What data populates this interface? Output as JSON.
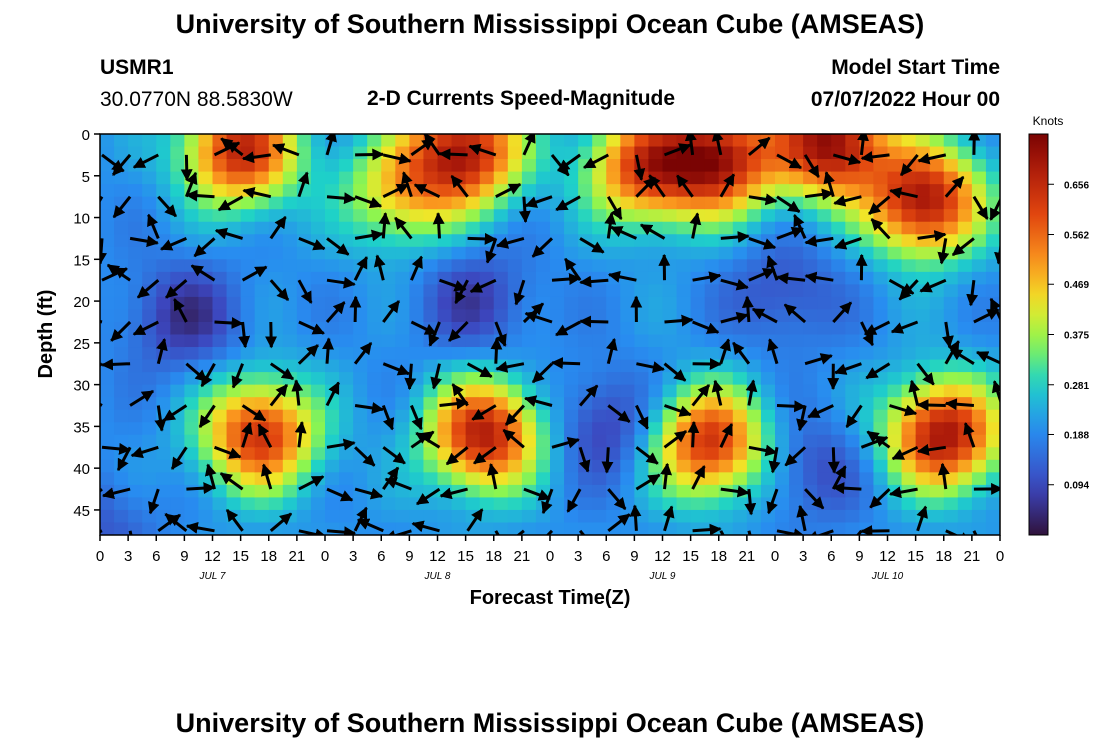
{
  "page": {
    "title_top": "University of Southern Mississippi Ocean Cube (AMSEAS)",
    "title_bottom": "University of Southern Mississippi Ocean Cube (AMSEAS)",
    "station_id": "USMR1",
    "station_coords": "30.0770N  88.5830W",
    "plot_title": "2-D Currents Speed-Magnitude",
    "model_start_label": "Model Start Time",
    "model_start_value": "07/07/2022 Hour 00"
  },
  "chart_data": {
    "type": "heatmap",
    "title": "2-D Currents Speed-Magnitude",
    "xlabel": "Forecast Time(Z)",
    "ylabel": "Depth (ft)",
    "x_range_hours": [
      0,
      96
    ],
    "x_tick_step_hours": 3,
    "x_tick_labels": [
      "0",
      "3",
      "6",
      "9",
      "12",
      "15",
      "18",
      "21",
      "0",
      "3",
      "6",
      "9",
      "12",
      "15",
      "18",
      "21",
      "0",
      "3",
      "6",
      "9",
      "12",
      "15",
      "18",
      "21",
      "0",
      "3",
      "6",
      "9",
      "12",
      "15",
      "18",
      "21",
      "0"
    ],
    "day_labels": [
      {
        "label": "JUL 7",
        "hour": 12
      },
      {
        "label": "JUL 8",
        "hour": 36
      },
      {
        "label": "JUL 9",
        "hour": 60
      },
      {
        "label": "JUL 10",
        "hour": 84
      }
    ],
    "y_range_ft": [
      0,
      48
    ],
    "y_ticks": [
      "0",
      "5",
      "10",
      "15",
      "20",
      "25",
      "30",
      "35",
      "40",
      "45"
    ],
    "colorbar": {
      "title": "Knots",
      "range": [
        0,
        0.75
      ],
      "tick_labels": [
        "0.656",
        "0.562",
        "0.469",
        "0.375",
        "0.281",
        "0.188",
        "0.094"
      ]
    },
    "speed_blobs": [
      {
        "t": 15,
        "d": 2,
        "value": 0.66
      },
      {
        "t": 39,
        "d": 2,
        "value": 0.68
      },
      {
        "t": 32,
        "d": 7,
        "value": 0.45
      },
      {
        "t": 58,
        "d": 4,
        "value": 0.6
      },
      {
        "t": 66,
        "d": 3,
        "value": 0.68
      },
      {
        "t": 78,
        "d": 1,
        "value": 0.72
      },
      {
        "t": 88,
        "d": 8,
        "value": 0.7
      },
      {
        "t": 17,
        "d": 36,
        "value": 0.64
      },
      {
        "t": 41,
        "d": 36,
        "value": 0.68
      },
      {
        "t": 65,
        "d": 37,
        "value": 0.64
      },
      {
        "t": 90,
        "d": 36,
        "value": 0.7
      },
      {
        "t": 9,
        "d": 22,
        "value": 0.06
      },
      {
        "t": 40,
        "d": 20,
        "value": 0.08
      },
      {
        "t": 54,
        "d": 35,
        "value": 0.07
      },
      {
        "t": 73,
        "d": 19,
        "value": 0.1
      },
      {
        "t": 76,
        "d": 40,
        "value": 0.1
      },
      {
        "t": 0,
        "d": 47,
        "value": 0.12
      }
    ],
    "background_speed": 0.2
  }
}
